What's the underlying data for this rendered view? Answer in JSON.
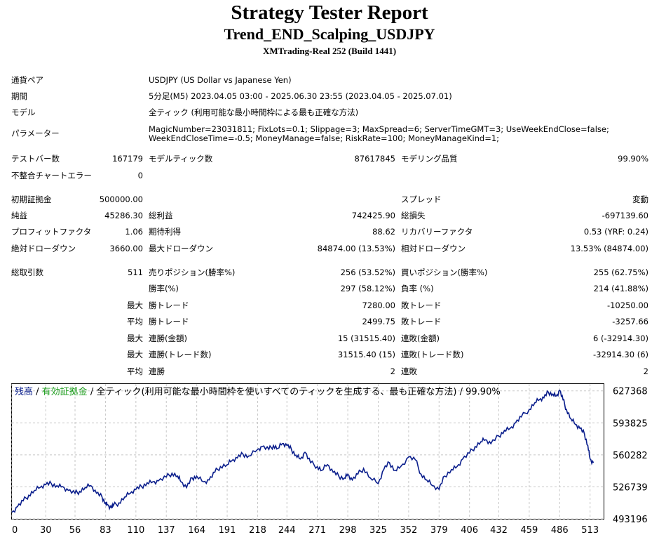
{
  "header": {
    "title": "Strategy Tester Report",
    "subtitle": "Trend_END_Scalping_USDJPY",
    "server": "XMTrading-Real 252 (Build 1441)"
  },
  "info": {
    "pair_label": "通貨ペア",
    "pair_value": "USDJPY (US Dollar vs Japanese Yen)",
    "period_label": "期間",
    "period_value": "5分足(M5) 2023.04.05 03:00 - 2025.06.30 23:55 (2023.04.05 - 2025.07.01)",
    "model_label": "モデル",
    "model_value": "全ティック (利用可能な最小時間枠による最も正確な方法)",
    "params_label": "パラメーター",
    "params_line1": "MagicNumber=23031811; FixLots=0.1; Slippage=3; MaxSpread=6; ServerTimeGMT=3; UseWeekEndClose=false;",
    "params_line2": "WeekEndCloseTime=-0.5; MoneyManage=false; RiskRate=100; MoneyManageKind=1;"
  },
  "stats": {
    "bars_label": "テストバー数",
    "bars_value": "167179",
    "ticks_label": "モデルティック数",
    "ticks_value": "87617845",
    "quality_label": "モデリング品質",
    "quality_value": "99.90%",
    "errors_label": "不整合チャートエラー",
    "errors_value": "0",
    "deposit_label": "初期証拠金",
    "deposit_value": "500000.00",
    "spread_label": "スプレッド",
    "spread_value": "変動",
    "net_label": "純益",
    "net_value": "45286.30",
    "gross_profit_label": "総利益",
    "gross_profit_value": "742425.90",
    "gross_loss_label": "総損失",
    "gross_loss_value": "-697139.60",
    "pf_label": "プロフィットファクタ",
    "pf_value": "1.06",
    "payoff_label": "期待利得",
    "payoff_value": "88.62",
    "rf_label": "リカバリーファクタ",
    "rf_value": "0.53 (YRF: 0.24)",
    "abs_dd_label": "絶対ドローダウン",
    "abs_dd_value": "3660.00",
    "max_dd_label": "最大ドローダウン",
    "max_dd_value": "84874.00 (13.53%)",
    "rel_dd_label": "相対ドローダウン",
    "rel_dd_value": "13.53% (84874.00)",
    "trades_label": "総取引数",
    "trades_value": "511",
    "short_label": "売りポジション(勝率%)",
    "short_value": "256 (53.52%)",
    "long_label": "買いポジション(勝率%)",
    "long_value": "255 (62.75%)",
    "winrate_label": "勝率(%)",
    "winrate_value": "297 (58.12%)",
    "lossrate_label": "負率 (%)",
    "lossrate_value": "214 (41.88%)",
    "max1": "最大",
    "lg_win_label": "勝トレード",
    "lg_win_value": "7280.00",
    "lg_loss_label": "敗トレード",
    "lg_loss_value": "-10250.00",
    "avg1": "平均",
    "avg_win_label": "勝トレード",
    "avg_win_value": "2499.75",
    "avg_loss_label": "敗トレード",
    "avg_loss_value": "-3257.66",
    "max2": "最大",
    "cw_money_label": "連勝(金額)",
    "cw_money_value": "15 (31515.40)",
    "cl_money_label": "連敗(金額)",
    "cl_money_value": "6 (-32914.30)",
    "max3": "最大",
    "cw_trade_label": "連勝(トレード数)",
    "cw_trade_value": "31515.40 (15)",
    "cl_trade_label": "連敗(トレード数)",
    "cl_trade_value": "-32914.30 (6)",
    "avg2": "平均",
    "avg_cw_label": "連勝",
    "avg_cw_value": "2",
    "avg_cl_label": "連敗",
    "avg_cl_value": "2"
  },
  "chart_data": {
    "type": "line",
    "legend_balance": "残高",
    "legend_sep1": " / ",
    "legend_equity": "有効証拠金",
    "legend_rest": " / 全ティック(利用可能な最小時間枠を使いすべてのティックを生成する、最も正確な方法) / 99.90%",
    "x_ticks": [
      0,
      30,
      56,
      83,
      110,
      137,
      164,
      191,
      218,
      244,
      271,
      298,
      325,
      352,
      379,
      406,
      432,
      459,
      486,
      513
    ],
    "y_ticks": [
      493196,
      526739,
      560282,
      593825,
      627368
    ],
    "xlim": [
      0,
      525
    ],
    "ylim": [
      493196,
      634500
    ],
    "colors": {
      "balance": "#0a1e8c",
      "equity": "#1e9e1e",
      "grid": "#c8c8c8"
    },
    "series": [
      {
        "x": [
          0,
          5,
          10,
          15,
          20,
          25,
          30,
          35,
          40,
          45,
          50,
          56,
          60,
          65,
          70,
          75,
          80,
          83,
          85,
          88,
          90,
          95,
          100,
          105,
          110,
          115,
          120,
          125,
          130,
          137,
          142,
          147,
          150,
          155,
          160,
          164,
          170,
          175,
          180,
          185,
          191,
          195,
          200,
          205,
          210,
          218,
          222,
          228,
          232,
          236,
          240,
          244,
          248,
          252,
          256,
          260,
          265,
          271,
          275,
          280,
          285,
          290,
          295,
          298,
          302,
          307,
          312,
          318,
          325,
          330,
          335,
          340,
          345,
          352,
          358,
          363,
          368,
          373,
          379,
          384,
          390,
          395,
          400,
          406,
          411,
          416,
          420,
          425,
          432,
          437,
          442,
          447,
          452,
          459,
          464,
          468,
          472,
          476,
          480,
          483,
          486,
          489,
          492,
          496,
          500,
          504,
          508,
          511,
          513,
          516
        ],
        "y": [
          500000,
          506000,
          512000,
          518000,
          523000,
          526000,
          529000,
          530000,
          528000,
          527000,
          523000,
          520000,
          522000,
          526000,
          528000,
          520000,
          516000,
          510000,
          508000,
          505000,
          507000,
          510000,
          516000,
          520000,
          524000,
          527000,
          531000,
          532000,
          533000,
          537000,
          541000,
          538000,
          532000,
          526000,
          536000,
          538000,
          532000,
          534000,
          542000,
          548000,
          550000,
          554000,
          557000,
          561000,
          559000,
          566000,
          569000,
          566000,
          570000,
          567000,
          572000,
          570000,
          566000,
          560000,
          556000,
          563000,
          552000,
          548000,
          544000,
          550000,
          542000,
          538000,
          536000,
          540000,
          534000,
          540000,
          546000,
          536000,
          530000,
          545000,
          552000,
          544000,
          548000,
          558000,
          555000,
          540000,
          534000,
          528000,
          524000,
          538000,
          545000,
          548000,
          556000,
          562000,
          569000,
          574000,
          576000,
          572000,
          580000,
          586000,
          588000,
          594000,
          600000,
          608000,
          615000,
          618000,
          620000,
          626000,
          624000,
          622000,
          628000,
          618000,
          608000,
          598000,
          592000,
          588000,
          582000,
          570000,
          556000,
          552000
        ]
      }
    ]
  }
}
